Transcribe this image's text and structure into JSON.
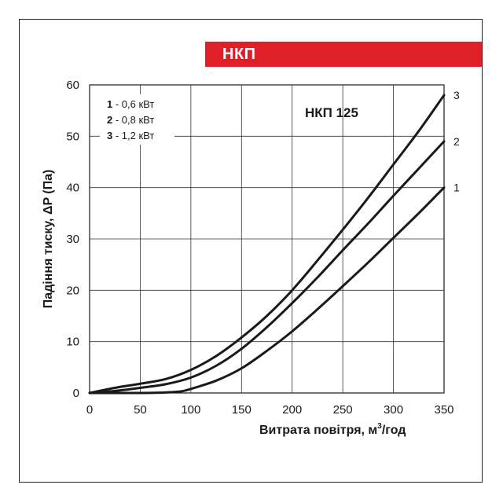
{
  "badge": {
    "label": "НКП",
    "color": "#e02028"
  },
  "chart_data": {
    "type": "line",
    "title": "НКП 125",
    "xlabel": "Витрата повітря, м",
    "xlabel_sup": "3",
    "xlabel_suffix": "/год",
    "ylabel": "Падіння тиску, ΔP (Па)",
    "xlim": [
      0,
      350
    ],
    "ylim": [
      0,
      60
    ],
    "xticks": [
      0,
      50,
      100,
      150,
      200,
      250,
      300,
      350
    ],
    "yticks": [
      0,
      10,
      20,
      30,
      40,
      50,
      60
    ],
    "grid": true,
    "legend_position": "top-left",
    "legend": [
      {
        "num": "1",
        "text": " - 0,6 кВт"
      },
      {
        "num": "2",
        "text": " - 0,8 кВт"
      },
      {
        "num": "3",
        "text": " - 1,2 кВт"
      }
    ],
    "line_color": "#1a1a1a",
    "series": [
      {
        "name": "1",
        "x": [
          0,
          25,
          50,
          75,
          90,
          100,
          125,
          150,
          175,
          200,
          225,
          250,
          275,
          300,
          325,
          350
        ],
        "y": [
          0,
          0,
          0,
          0.1,
          0.3,
          0.8,
          2.4,
          4.8,
          8.2,
          12.0,
          16.3,
          20.8,
          25.4,
          30.2,
          35.0,
          40.0
        ]
      },
      {
        "name": "2",
        "x": [
          0,
          25,
          50,
          75,
          100,
          125,
          150,
          175,
          200,
          225,
          250,
          275,
          300,
          325,
          350
        ],
        "y": [
          0,
          0.4,
          1.0,
          1.7,
          3.0,
          5.3,
          8.6,
          12.8,
          17.5,
          22.5,
          27.8,
          33.0,
          38.4,
          43.7,
          49.0
        ]
      },
      {
        "name": "3",
        "x": [
          0,
          25,
          50,
          75,
          100,
          125,
          150,
          175,
          200,
          225,
          250,
          275,
          300,
          325,
          350
        ],
        "y": [
          0,
          1.0,
          1.8,
          2.7,
          4.5,
          7.2,
          10.8,
          15.0,
          20.0,
          25.8,
          31.8,
          38.0,
          44.5,
          51.0,
          58.0
        ]
      }
    ]
  }
}
